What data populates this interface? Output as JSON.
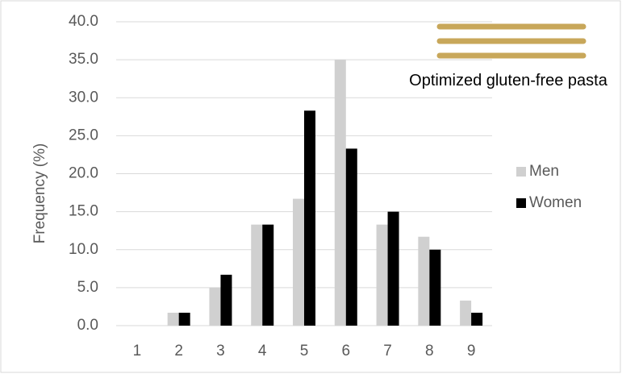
{
  "chart_data": {
    "type": "bar",
    "annotation": "Optimized gluten-free pasta",
    "y_label": "Frequency  (%)",
    "categories": [
      "1",
      "2",
      "3",
      "4",
      "5",
      "6",
      "7",
      "8",
      "9"
    ],
    "series": [
      {
        "name": "Men",
        "color": "#d0d0d0",
        "values": [
          0,
          1.7,
          5.0,
          13.3,
          16.7,
          35.0,
          13.3,
          11.7,
          3.3
        ]
      },
      {
        "name": "Women",
        "color": "#000000",
        "values": [
          0,
          1.7,
          6.7,
          13.3,
          28.3,
          23.3,
          15.0,
          10.0,
          1.7
        ]
      }
    ],
    "ylim": [
      0,
      40
    ],
    "yticks": [
      {
        "value": 0,
        "label": "0.0"
      },
      {
        "value": 5,
        "label": "5.0"
      },
      {
        "value": 10,
        "label": "10.0"
      },
      {
        "value": 15,
        "label": "15.0"
      },
      {
        "value": 20,
        "label": "20.0"
      },
      {
        "value": 25,
        "label": "25.0"
      },
      {
        "value": 30,
        "label": "30.0"
      },
      {
        "value": 35,
        "label": "35.0"
      },
      {
        "value": 40,
        "label": "40.0"
      }
    ],
    "grid": true
  }
}
